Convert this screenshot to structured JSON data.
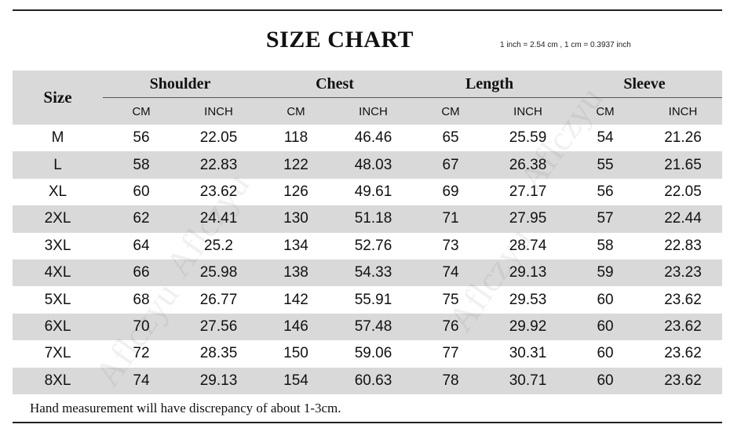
{
  "title": "SIZE CHART",
  "conversion": "1 inch = 2.54 cm , 1 cm = 0.3937 inch",
  "size_header": "Size",
  "groups": [
    "Shoulder",
    "Chest",
    "Length",
    "Sleeve"
  ],
  "units": [
    "CM",
    "INCH"
  ],
  "rows": [
    {
      "size": "M",
      "values": [
        "56",
        "22.05",
        "118",
        "46.46",
        "65",
        "25.59",
        "54",
        "21.26"
      ]
    },
    {
      "size": "L",
      "values": [
        "58",
        "22.83",
        "122",
        "48.03",
        "67",
        "26.38",
        "55",
        "21.65"
      ]
    },
    {
      "size": "XL",
      "values": [
        "60",
        "23.62",
        "126",
        "49.61",
        "69",
        "27.17",
        "56",
        "22.05"
      ]
    },
    {
      "size": "2XL",
      "values": [
        "62",
        "24.41",
        "130",
        "51.18",
        "71",
        "27.95",
        "57",
        "22.44"
      ]
    },
    {
      "size": "3XL",
      "values": [
        "64",
        "25.2",
        "134",
        "52.76",
        "73",
        "28.74",
        "58",
        "22.83"
      ]
    },
    {
      "size": "4XL",
      "values": [
        "66",
        "25.98",
        "138",
        "54.33",
        "74",
        "29.13",
        "59",
        "23.23"
      ]
    },
    {
      "size": "5XL",
      "values": [
        "68",
        "26.77",
        "142",
        "55.91",
        "75",
        "29.53",
        "60",
        "23.62"
      ]
    },
    {
      "size": "6XL",
      "values": [
        "70",
        "27.56",
        "146",
        "57.48",
        "76",
        "29.92",
        "60",
        "23.62"
      ]
    },
    {
      "size": "7XL",
      "values": [
        "72",
        "28.35",
        "150",
        "59.06",
        "77",
        "30.31",
        "60",
        "23.62"
      ]
    },
    {
      "size": "8XL",
      "values": [
        "74",
        "29.13",
        "154",
        "60.63",
        "78",
        "30.71",
        "60",
        "23.62"
      ]
    }
  ],
  "note": "Hand measurement will have discrepancy of about 1-3cm.",
  "watermark": "Aflczyu",
  "colors": {
    "header_bg": "#d9d9d9",
    "alt_row_bg": "#d9d9d9",
    "rule": "#222222"
  }
}
